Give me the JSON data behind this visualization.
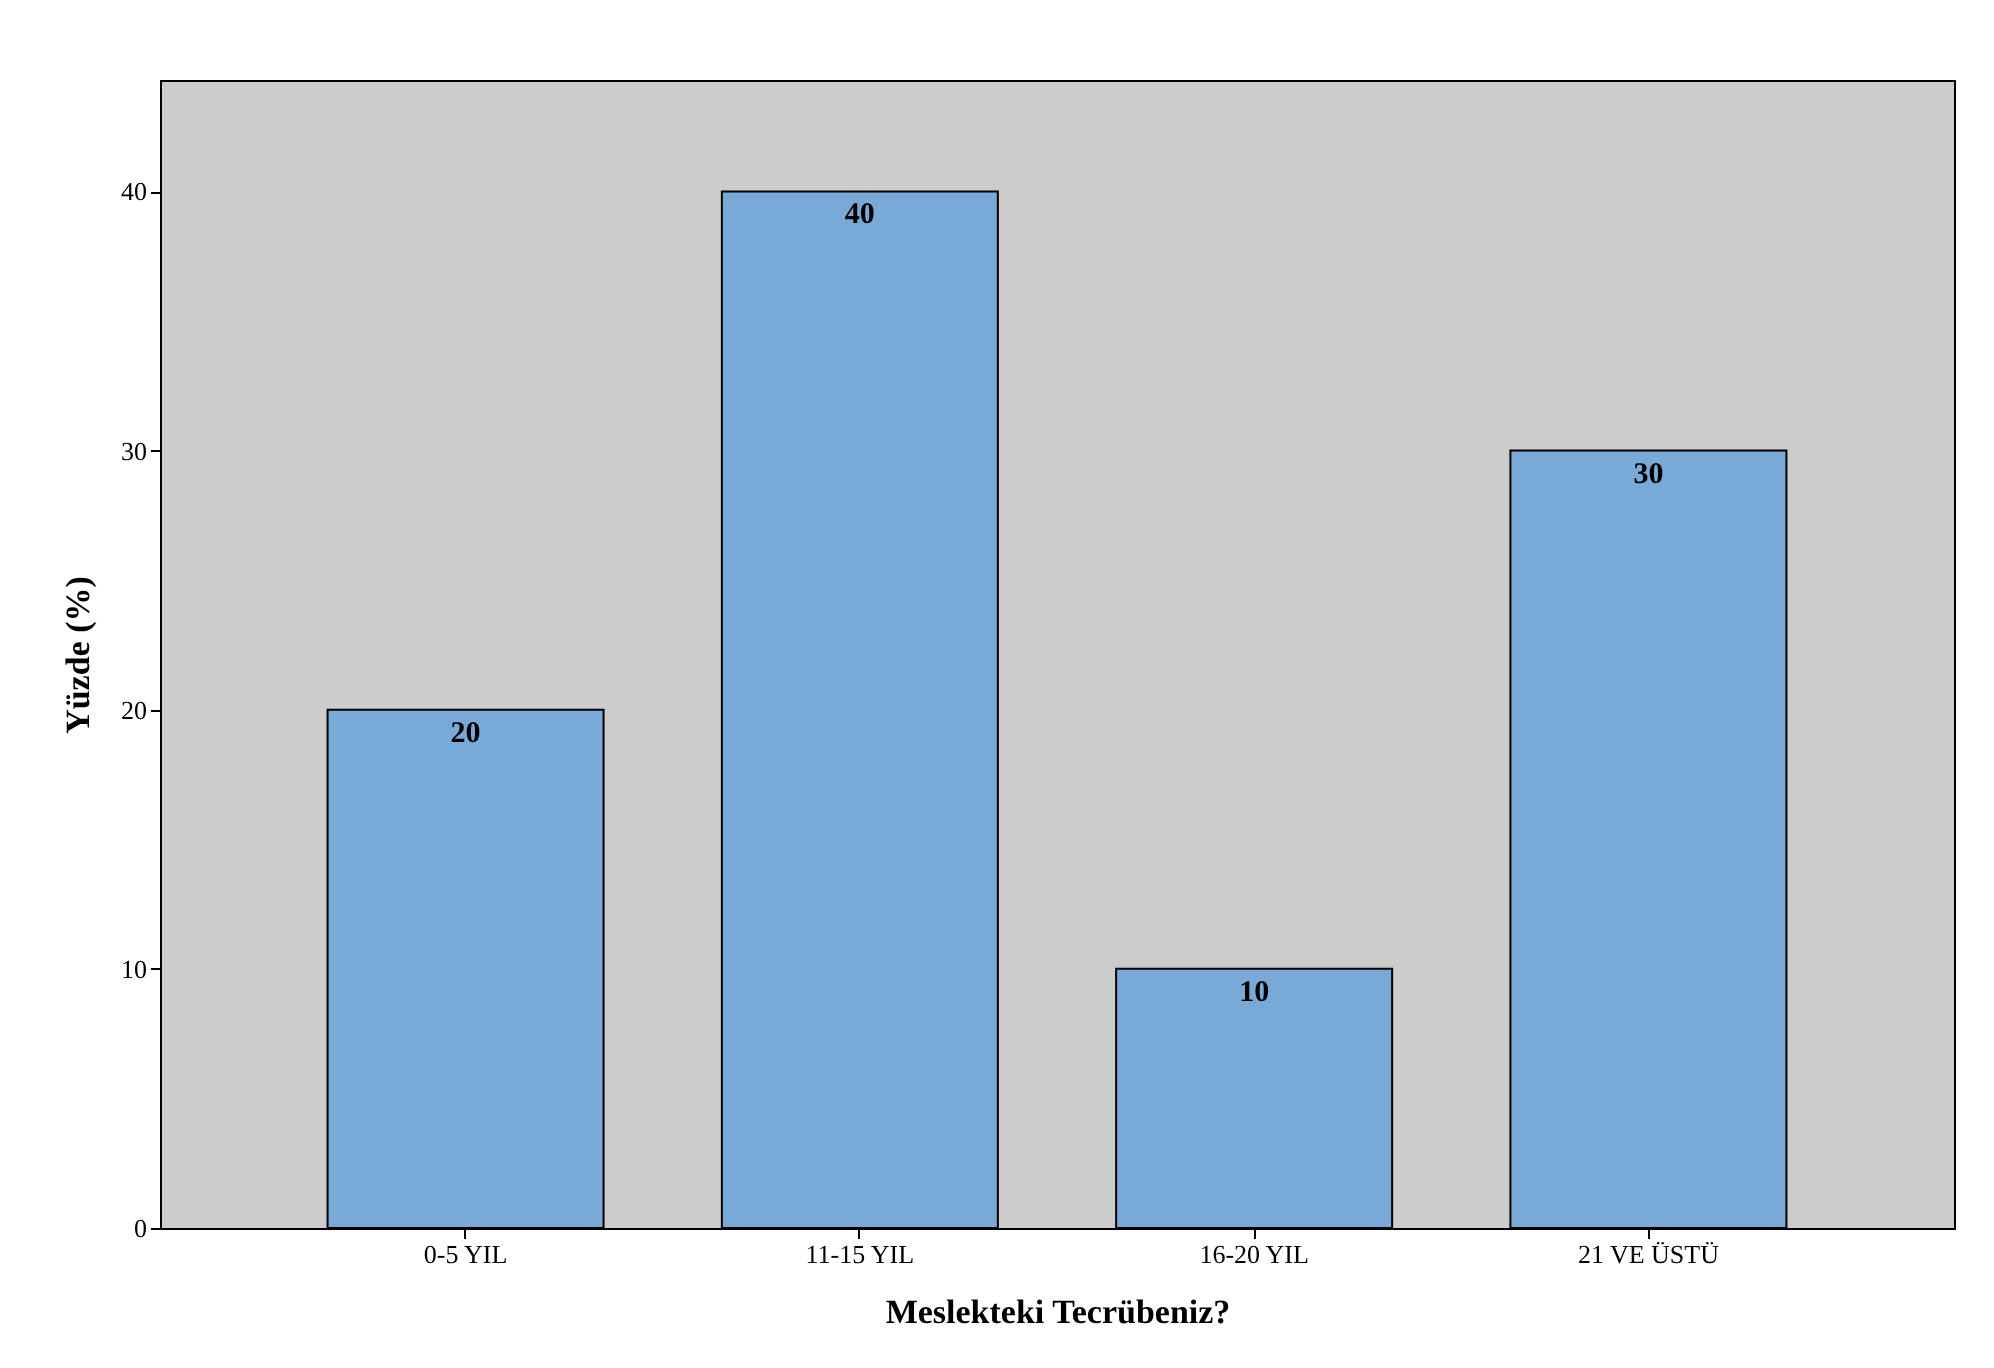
{
  "chart_data": {
    "type": "bar",
    "xlabel": "Meslekteki Tecrübeniz?",
    "ylabel": "Yüzde (%)",
    "categories": [
      "0-5 YIL",
      "11-15 YIL",
      "16-20 YIL",
      "21 VE ÜSTÜ"
    ],
    "values": [
      20,
      40,
      10,
      30
    ],
    "color": "#79a9d7",
    "ylim": [
      0,
      44.3
    ],
    "yticks": [
      0,
      10,
      20,
      30,
      40
    ],
    "grid": false,
    "data_labels": true
  }
}
